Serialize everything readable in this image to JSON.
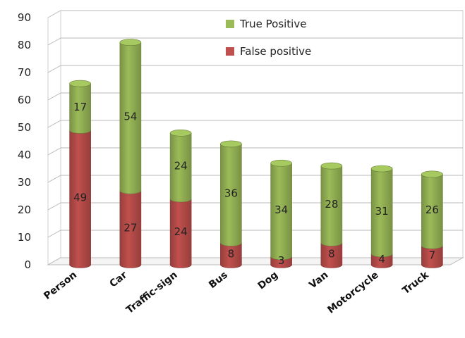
{
  "chart_data": {
    "type": "bar",
    "stacked": true,
    "style": "3d-cylinder",
    "title": "",
    "xlabel": "",
    "ylabel": "",
    "ylim": [
      0,
      90
    ],
    "yticks": [
      "0",
      "10",
      "20",
      "30",
      "40",
      "50",
      "60",
      "70",
      "80",
      "90"
    ],
    "grid": true,
    "legend_position": "top-right",
    "categories": [
      "Person",
      "Car",
      "Traffic-sign",
      "Bus",
      "Dog",
      "Van",
      "Motorcycle",
      "Truck"
    ],
    "series": [
      {
        "name": "False positive",
        "color": "#c0504d",
        "values": [
          49,
          27,
          24,
          8,
          3,
          8,
          4,
          7
        ]
      },
      {
        "name": "True Positive",
        "color": "#9bbb59",
        "values": [
          17,
          54,
          24,
          36,
          34,
          28,
          31,
          26
        ]
      }
    ],
    "legend_order": [
      1,
      0
    ]
  }
}
